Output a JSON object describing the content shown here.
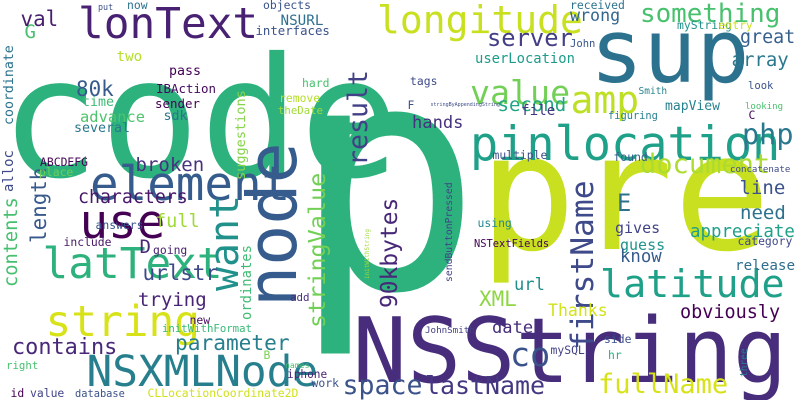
{
  "words": [
    {
      "text": "p",
      "color": "#2db27d"
    },
    {
      "text": "code",
      "color": "#2db27d"
    },
    {
      "text": "pre",
      "color": "#c8e020"
    },
    {
      "text": "sup",
      "color": "#2c728e"
    },
    {
      "text": "NSString",
      "color": "#472d7b"
    },
    {
      "text": "node",
      "color": "#365c8d"
    },
    {
      "text": "pinlocation",
      "color": "#1fa088"
    },
    {
      "text": "latitude",
      "color": "#1fa088"
    },
    {
      "text": "longitude",
      "color": "#c8e020"
    },
    {
      "text": "element",
      "color": "#365c8d"
    },
    {
      "text": "NSXMLNode",
      "color": "#277f8e"
    },
    {
      "text": "latText",
      "color": "#2db27d"
    },
    {
      "text": "string",
      "color": "#d8e219"
    },
    {
      "text": "lonText",
      "color": "#482173"
    },
    {
      "text": "want",
      "color": "#21918c"
    },
    {
      "text": "use",
      "color": "#440154"
    },
    {
      "text": "firstName",
      "color": "#3e4a89"
    },
    {
      "text": "stringValue",
      "color": "#73d056"
    },
    {
      "text": "value",
      "color": "#73d056"
    },
    {
      "text": "amp",
      "color": "#bddf26"
    },
    {
      "text": "result",
      "color": "#424086"
    },
    {
      "text": "server",
      "color": "#433e85"
    },
    {
      "text": "something",
      "color": "#48c16e"
    },
    {
      "text": "document",
      "color": "#addc30"
    },
    {
      "text": "php",
      "color": "#2a788e"
    },
    {
      "text": "array",
      "color": "#2a788e"
    },
    {
      "text": "wrong",
      "color": "#31668e"
    },
    {
      "text": "great",
      "color": "#355f8d"
    },
    {
      "text": "line",
      "color": "#3b528b"
    },
    {
      "text": "need",
      "color": "#2c728e"
    },
    {
      "text": "appreciate",
      "color": "#1fa088"
    },
    {
      "text": "obviously",
      "color": "#440154"
    },
    {
      "text": "fullName",
      "color": "#d8e219"
    },
    {
      "text": "lastName",
      "color": "#453882"
    },
    {
      "text": "space",
      "color": "#3b528b"
    },
    {
      "text": "parameter",
      "color": "#277f8e"
    },
    {
      "text": "contains",
      "color": "#482878"
    },
    {
      "text": "contents",
      "color": "#46c06f"
    },
    {
      "text": "trying",
      "color": "#482475"
    },
    {
      "text": "urlstr",
      "color": "#3e4989"
    },
    {
      "text": "characters",
      "color": "#481769"
    },
    {
      "text": "broken",
      "color": "#46337f"
    },
    {
      "text": "length",
      "color": "#38598c"
    },
    {
      "text": "full",
      "color": "#a0da39"
    },
    {
      "text": "ordinates",
      "color": "#3fbc73"
    },
    {
      "text": "suggestions",
      "color": "#86d549"
    },
    {
      "text": "90kbytes",
      "color": "#482878"
    },
    {
      "text": "second",
      "color": "#21a585"
    },
    {
      "text": "hands",
      "color": "#46327e"
    },
    {
      "text": "gives",
      "color": "#414487"
    },
    {
      "text": "guess",
      "color": "#20938c"
    },
    {
      "text": "know",
      "color": "#365c8d"
    },
    {
      "text": "XML",
      "color": "#8ed645"
    },
    {
      "text": "Thanks",
      "color": "#d2e21b"
    },
    {
      "text": "release",
      "color": "#2e6e8e"
    },
    {
      "text": "80k",
      "color": "#375a8c"
    },
    {
      "text": "advance",
      "color": "#4ec36b"
    },
    {
      "text": "userLocation",
      "color": "#1e9b8a"
    },
    {
      "text": "co",
      "color": "#3b528b"
    },
    {
      "text": "url",
      "color": "#228d8d"
    },
    {
      "text": "date",
      "color": "#462f7c"
    },
    {
      "text": "file",
      "color": "#453581"
    },
    {
      "text": "E",
      "color": "#2c728e"
    },
    {
      "text": "D",
      "color": "#482878"
    },
    {
      "text": "G",
      "color": "#48c16e"
    },
    {
      "text": "val",
      "color": "#481f70"
    },
    {
      "text": "NSURL",
      "color": "#2e6f8e"
    },
    {
      "text": "interfaces",
      "color": "#3b518b"
    },
    {
      "text": "objects",
      "color": "#3b528b"
    },
    {
      "text": "two",
      "color": "#b5de2b"
    },
    {
      "text": "pass",
      "color": "#440154"
    },
    {
      "text": "IBAction",
      "color": "#46085c"
    },
    {
      "text": "sender",
      "color": "#440154"
    },
    {
      "text": "sdk",
      "color": "#2c738e"
    },
    {
      "text": "several",
      "color": "#2a788e"
    },
    {
      "text": "time",
      "color": "#3fbc73"
    },
    {
      "text": "alloc",
      "color": "#3e4a89"
    },
    {
      "text": "coordinate",
      "color": "#2c738e"
    },
    {
      "text": "ABCDEFG",
      "color": "#440154"
    },
    {
      "text": "place",
      "color": "#6ccd5a"
    },
    {
      "text": "answers",
      "color": "#39568c"
    },
    {
      "text": "include",
      "color": "#481769"
    },
    {
      "text": "going",
      "color": "#482071"
    },
    {
      "text": "initWithFormat",
      "color": "#38b977"
    },
    {
      "text": "new",
      "color": "#470e61"
    },
    {
      "text": "hard",
      "color": "#48c16e"
    },
    {
      "text": "remove",
      "color": "#b5de2b"
    },
    {
      "text": "theDate",
      "color": "#a2da37"
    },
    {
      "text": "tags",
      "color": "#3e4c8a"
    },
    {
      "text": "multiple",
      "color": "#3e4c8a"
    },
    {
      "text": "found",
      "color": "#365d8d"
    },
    {
      "text": "concatenate",
      "color": "#3e4a89"
    },
    {
      "text": "category",
      "color": "#3e4989"
    },
    {
      "text": "NSTextFields",
      "color": "#440154"
    },
    {
      "text": "using",
      "color": "#23888e"
    },
    {
      "text": "sendButtonPressed",
      "color": "#414487"
    },
    {
      "text": "initWithString",
      "color": "#9fda3a"
    },
    {
      "text": "JohnSmith",
      "color": "#423f85"
    },
    {
      "text": "mySQL",
      "color": "#424186"
    },
    {
      "text": "side",
      "color": "#3b518b"
    },
    {
      "text": "hr",
      "color": "#2ab07f"
    },
    {
      "text": "three",
      "color": "#287c8e"
    },
    {
      "text": "iphone",
      "color": "#482475"
    },
    {
      "text": "work",
      "color": "#3b518b"
    },
    {
      "text": "names",
      "color": "#48c16e"
    },
    {
      "text": "B",
      "color": "#7ad151"
    },
    {
      "text": "right",
      "color": "#46c06f"
    },
    {
      "text": "id",
      "color": "#440154"
    },
    {
      "text": "value",
      "color": "#414487"
    },
    {
      "text": "database",
      "color": "#3b528b"
    },
    {
      "text": "CLLocationCoordinate2D",
      "color": "#d0e11c"
    },
    {
      "text": "add",
      "color": "#46327e"
    },
    {
      "text": "received",
      "color": "#2c728e"
    },
    {
      "text": "myString",
      "color": "#21918c"
    },
    {
      "text": "entry",
      "color": "#d0e11c"
    },
    {
      "text": "looking",
      "color": "#4ac16d"
    },
    {
      "text": "look",
      "color": "#3b528b"
    },
    {
      "text": "John",
      "color": "#39568c"
    },
    {
      "text": "Smith",
      "color": "#26828e"
    },
    {
      "text": "stringByAppendingString",
      "color": "#3e4c8a"
    },
    {
      "text": "figuring",
      "color": "#26828e"
    },
    {
      "text": "mapView",
      "color": "#26828e"
    },
    {
      "text": "C",
      "color": "#46085c"
    },
    {
      "text": "F",
      "color": "#3b528b"
    },
    {
      "text": "now",
      "color": "#2c728e"
    },
    {
      "text": "put",
      "color": "#3b528b"
    }
  ]
}
